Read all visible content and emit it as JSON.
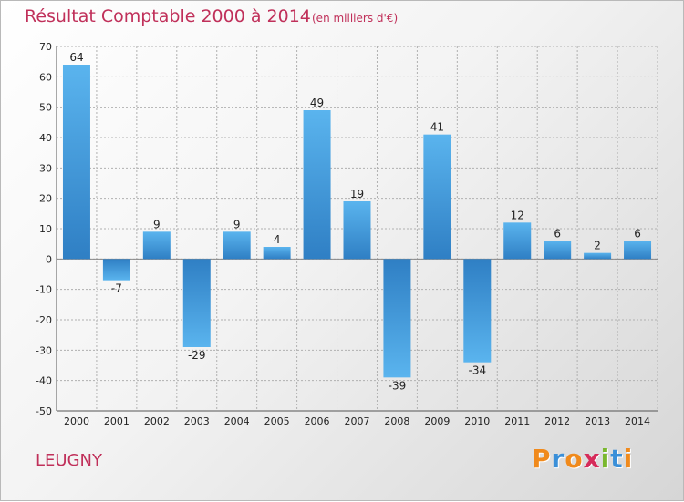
{
  "title": "Résultat Comptable 2000 à 2014",
  "subtitle": "(en milliers d'€)",
  "commune": "LEUGNY",
  "logo": {
    "text": "Proxiti",
    "colors": [
      "#f08a1c",
      "#3a8fd8",
      "#f08a1c",
      "#d62b5a",
      "#7ab82e",
      "#3a8fd8",
      "#f08a1c"
    ]
  },
  "colors": {
    "bar_top": "#5ab4ee",
    "bar_bottom": "#2f7fc4",
    "title": "#c0305a"
  },
  "chart_data": {
    "type": "bar",
    "categories": [
      "2000",
      "2001",
      "2002",
      "2003",
      "2004",
      "2005",
      "2006",
      "2007",
      "2008",
      "2009",
      "2010",
      "2011",
      "2012",
      "2013",
      "2014"
    ],
    "values": [
      64,
      -7,
      9,
      -29,
      9,
      4,
      49,
      19,
      -39,
      41,
      -34,
      12,
      6,
      2,
      6
    ],
    "data_labels": [
      "64",
      "-7",
      "9",
      "-29",
      "9",
      "4",
      "49",
      "19",
      "-39",
      "41",
      "-34",
      "12",
      "6",
      "2",
      "6"
    ],
    "ylim": [
      -50,
      70
    ],
    "yticks": [
      70,
      60,
      50,
      40,
      30,
      20,
      10,
      0,
      -10,
      -20,
      -30,
      -40,
      -50
    ],
    "ytick_labels": [
      "70",
      "60",
      "50",
      "40",
      "30",
      "20",
      "10",
      "0",
      "-10",
      "-20",
      "-30",
      "-40",
      "-50"
    ],
    "grid": true,
    "xlabel": "",
    "ylabel": ""
  }
}
